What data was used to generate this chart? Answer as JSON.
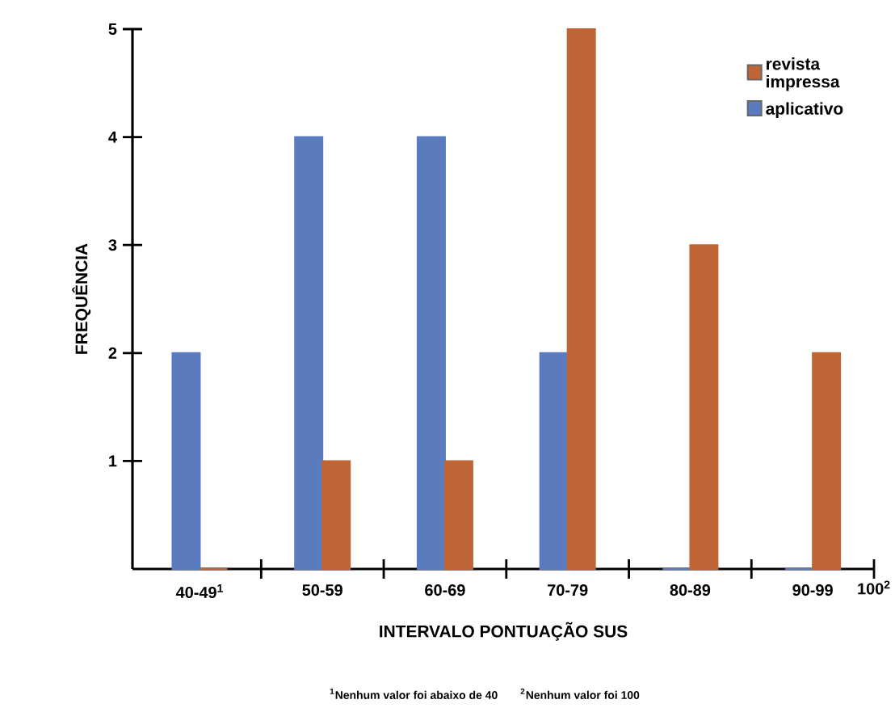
{
  "chart_data": {
    "type": "bar",
    "xlabel": "INTERVALO PONTUAÇÃO SUS",
    "ylabel": "FREQUÊNCIA",
    "categories": [
      "40-49$^{1}$",
      "50-59",
      "60-69",
      "70-79",
      "80-89",
      "90-99"
    ],
    "series": [
      {
        "name": "aplicativo",
        "color": "#5b7bbf",
        "values": [
          2,
          4,
          4,
          2,
          0,
          0
        ]
      },
      {
        "name": "revista impressa",
        "color": "#c06535",
        "values": [
          0,
          1,
          1,
          5,
          3,
          2
        ]
      }
    ],
    "ylim": [
      0,
      5
    ],
    "yticks": [
      1,
      2,
      3,
      4,
      5
    ],
    "legend": "top right",
    "annotations": [
      "100$^{2}$",
      "$^{1}$Nenhum valor foi abaixo de 40",
      "$^{2}$Nenhum valor foi 100"
    ]
  }
}
